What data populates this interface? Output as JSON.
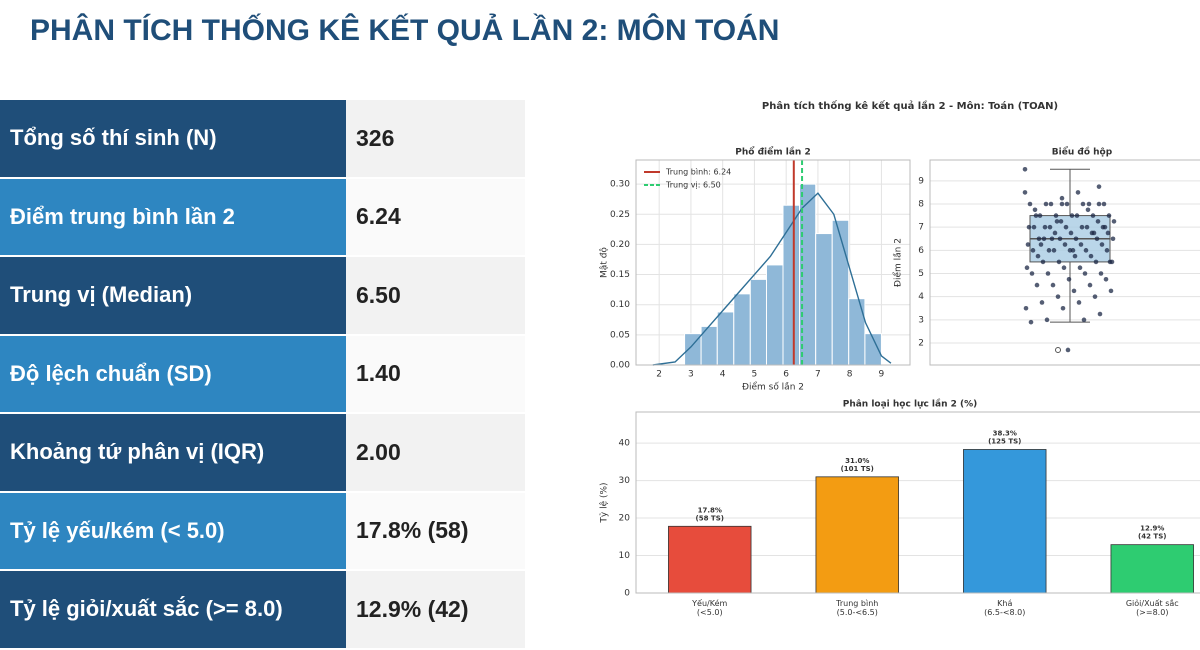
{
  "header": {
    "title": "PHÂN TÍCH THỐNG KÊ KẾT QUẢ LẦN 2: MÔN TOÁN"
  },
  "table": {
    "rows": [
      [
        "Tổng số thí sinh (N)",
        "326"
      ],
      [
        "Điểm trung bình lần 2",
        "6.24"
      ],
      [
        "Trung vị (Median)",
        "6.50"
      ],
      [
        "Độ lệch chuẩn (SD)",
        "1.40"
      ],
      [
        "Khoảng tứ phân vị (IQR)",
        "2.00"
      ],
      [
        "Tỷ lệ yếu/kém (< 5.0)",
        "17.8% (58)"
      ],
      [
        "Tỷ lệ giỏi/xuất sắc (>= 8.0)",
        "12.9% (42)"
      ]
    ]
  },
  "figure_title": "Phân tích thống kê kết quả lần 2 - Môn: Toán (TOAN)",
  "chart_data": [
    {
      "type": "histogram",
      "title": "Phổ điểm lần 2",
      "xlabel": "Điểm số lần 2",
      "ylabel": "Mật độ",
      "color": "#8fb8d8",
      "bins": [
        2.8,
        3.32,
        3.83,
        4.35,
        4.87,
        5.38,
        5.9,
        6.42,
        6.93,
        7.45,
        7.97,
        8.48,
        9.0
      ],
      "values": [
        0.052,
        0.064,
        0.088,
        0.118,
        0.142,
        0.166,
        0.265,
        0.3,
        0.218,
        0.24,
        0.11,
        0.052
      ],
      "kde": {
        "color": "#2e6f96",
        "x": [
          1.8,
          2.5,
          3,
          3.5,
          4,
          4.5,
          5,
          5.5,
          6,
          6.5,
          7,
          7.5,
          8,
          8.5,
          9,
          9.3
        ],
        "values": [
          0,
          0.005,
          0.03,
          0.06,
          0.09,
          0.12,
          0.15,
          0.18,
          0.22,
          0.26,
          0.285,
          0.25,
          0.16,
          0.07,
          0.015,
          0.003
        ]
      },
      "vlines": [
        {
          "name": "Trung bình: 6.24",
          "value": 6.24,
          "color": "#c0392b",
          "dashed": false
        },
        {
          "name": "Trung vị: 6.50",
          "value": 6.5,
          "color": "#2ecc71",
          "dashed": true
        }
      ],
      "xlim": [
        1.27,
        9.9
      ],
      "ylim": [
        0,
        0.34
      ],
      "xticks": [
        2,
        3,
        4,
        5,
        6,
        7,
        8,
        9
      ],
      "yticks": [
        {
          "value": 0,
          "label": "0.00"
        },
        {
          "value": 0.05,
          "label": "0.05"
        },
        {
          "value": 0.1,
          "label": "0.10"
        },
        {
          "value": 0.15,
          "label": "0.15"
        },
        {
          "value": 0.2,
          "label": "0.20"
        },
        {
          "value": 0.25,
          "label": "0.25"
        },
        {
          "value": 0.3,
          "label": "0.30"
        }
      ],
      "grid": true
    },
    {
      "type": "box",
      "title": "Biểu đồ hộp",
      "ylabel": "Điểm lần 2",
      "color": "#a9cce3",
      "point_color": "#1c2846",
      "box": {
        "q1": 5.5,
        "median": 6.5,
        "q3": 7.5,
        "whisker_low": 2.9,
        "whisker_high": 9.5,
        "outliers": [
          1.7
        ]
      },
      "points": [
        9.5,
        8,
        8,
        8,
        8,
        8,
        8,
        8,
        8,
        7.75,
        7.75,
        7.5,
        7.5,
        7.5,
        7.5,
        7.5,
        7.5,
        7.25,
        7.25,
        7.25,
        7,
        7,
        7,
        7,
        7,
        7,
        7,
        7,
        6.75,
        6.75,
        6.75,
        6.75,
        6.5,
        6.5,
        6.5,
        6.5,
        6.5,
        6.5,
        6.25,
        6.25,
        6.25,
        6.25,
        6,
        6,
        6,
        6,
        6,
        6,
        5.75,
        5.75,
        5.75,
        5.5,
        5.5,
        5.5,
        5.5,
        5.25,
        5.25,
        5.25,
        5,
        5,
        5,
        5,
        4.75,
        4.75,
        4.5,
        4.5,
        4.5,
        4.25,
        4.25,
        4,
        4,
        3.75,
        3.75,
        3.5,
        3.5,
        3.25,
        3,
        3,
        2.9,
        1.7,
        7,
        6.5,
        8,
        7.5,
        6,
        5.5,
        7.25,
        6.75,
        6.25,
        8.5,
        8.5,
        8.25,
        8.75
      ],
      "ylim": [
        1.05,
        9.9
      ],
      "yticks": [
        2,
        3,
        4,
        5,
        6,
        7,
        8,
        9
      ],
      "grid": true
    },
    {
      "type": "bar",
      "title": "Phân loại học lực lần 2 (%)",
      "ylabel": "Tỷ lệ (%)",
      "categories": [
        "Yếu/Kém\n(<5.0)",
        "Trung bình\n(5.0-<6.5)",
        "Khá\n(6.5-<8.0)",
        "Giỏi/Xuất sắc\n(>=8.0)"
      ],
      "values": [
        17.8,
        31.0,
        38.3,
        12.9
      ],
      "value_labels": [
        "17.8%\n(58 TS)",
        "31.0%\n(101 TS)",
        "38.3%\n(125 TS)",
        "12.9%\n(42 TS)"
      ],
      "colors": [
        "#e74c3c",
        "#f39c12",
        "#3498db",
        "#2ecc71"
      ],
      "ylim": [
        0,
        48.3
      ],
      "yticks": [
        0,
        10,
        20,
        30,
        40
      ],
      "grid": true
    }
  ]
}
